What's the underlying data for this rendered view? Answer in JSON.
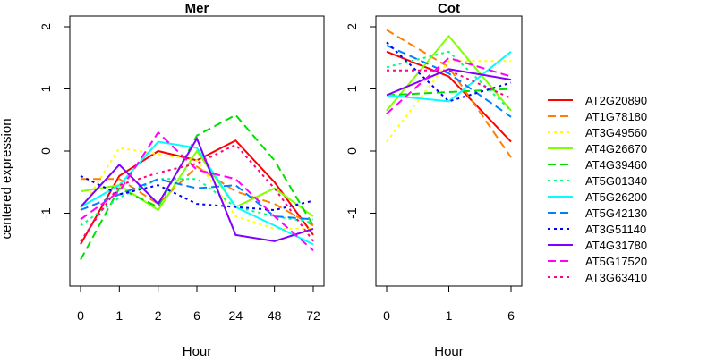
{
  "chart_data": {
    "type": "line",
    "ylabel": "centered expression",
    "legend_position": "right",
    "series": [
      {
        "name": "AT2G20890",
        "color": "#ff0000",
        "dash": "solid"
      },
      {
        "name": "AT1G78180",
        "color": "#ff8000",
        "dash": "longdash"
      },
      {
        "name": "AT3G49560",
        "color": "#ffff00",
        "dash": "dotted"
      },
      {
        "name": "AT4G26670",
        "color": "#80ff00",
        "dash": "solid"
      },
      {
        "name": "AT4G39460",
        "color": "#00e000",
        "dash": "longdash"
      },
      {
        "name": "AT5G01340",
        "color": "#00ff80",
        "dash": "dotted"
      },
      {
        "name": "AT5G26200",
        "color": "#00ffff",
        "dash": "solid"
      },
      {
        "name": "AT5G42130",
        "color": "#0080ff",
        "dash": "longdash"
      },
      {
        "name": "AT3G51140",
        "color": "#0000ff",
        "dash": "dotted"
      },
      {
        "name": "AT4G31780",
        "color": "#8000ff",
        "dash": "solid"
      },
      {
        "name": "AT5G17520",
        "color": "#ff00ff",
        "dash": "longdash"
      },
      {
        "name": "AT3G63410",
        "color": "#ff0080",
        "dash": "dotted"
      }
    ],
    "panels": [
      {
        "title": "Mer",
        "xlabel": "Hour",
        "x": [
          "0",
          "1",
          "2",
          "6",
          "24",
          "48",
          "72"
        ],
        "ylim": [
          -2,
          2
        ],
        "yticks": [
          -1,
          0,
          1,
          2
        ],
        "values": [
          [
            -1.5,
            -0.4,
            0.0,
            -0.15,
            0.17,
            -0.5,
            -1.35
          ],
          [
            -0.45,
            -0.45,
            -0.85,
            -0.25,
            -0.65,
            -0.85,
            -1.2
          ],
          [
            -0.95,
            0.05,
            -0.05,
            -0.15,
            -1.05,
            -1.25,
            -1.25
          ],
          [
            -0.65,
            -0.55,
            -0.95,
            0.0,
            -0.9,
            -0.6,
            -1.05
          ],
          [
            -1.75,
            -0.6,
            -0.9,
            0.25,
            0.58,
            -0.15,
            -1.2
          ],
          [
            -1.2,
            -0.75,
            -0.45,
            -0.45,
            -0.9,
            -1.05,
            -1.15
          ],
          [
            -0.9,
            -0.55,
            0.15,
            0.05,
            -0.9,
            -1.2,
            -1.5
          ],
          [
            -0.95,
            -0.7,
            -0.45,
            -0.6,
            -0.55,
            -1.05,
            -1.1
          ],
          [
            -0.4,
            -0.7,
            -0.55,
            -0.85,
            -0.9,
            -0.95,
            -0.8
          ],
          [
            -0.9,
            -0.22,
            -0.85,
            0.2,
            -1.35,
            -1.45,
            -1.25
          ],
          [
            -1.1,
            -0.65,
            0.3,
            -0.3,
            -0.45,
            -1.05,
            -1.6
          ],
          [
            -1.45,
            -0.55,
            -0.35,
            -0.2,
            0.1,
            -0.6,
            -1.45
          ]
        ]
      },
      {
        "title": "Cot",
        "xlabel": "Hour",
        "x": [
          "0",
          "1",
          "6"
        ],
        "ylim": [
          -2,
          2
        ],
        "yticks": [
          -1,
          0,
          1,
          2
        ],
        "values": [
          [
            1.6,
            1.2,
            0.15
          ],
          [
            1.95,
            1.35,
            -0.1
          ],
          [
            0.15,
            1.45,
            1.45
          ],
          [
            0.65,
            1.85,
            0.65
          ],
          [
            0.9,
            0.95,
            1.0
          ],
          [
            1.35,
            1.6,
            0.65
          ],
          [
            0.9,
            0.8,
            1.6
          ],
          [
            1.7,
            1.25,
            0.55
          ],
          [
            1.75,
            0.8,
            1.1
          ],
          [
            0.9,
            1.32,
            1.15
          ],
          [
            0.6,
            1.5,
            1.2
          ],
          [
            1.3,
            1.3,
            0.85
          ]
        ]
      }
    ]
  }
}
